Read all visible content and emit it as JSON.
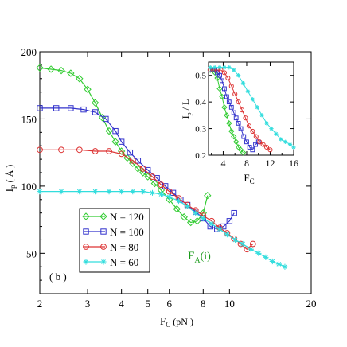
{
  "chart_data": [
    {
      "type": "line",
      "panel_label": "( b )",
      "annotation": "F_A(i)",
      "annotation_main": "F",
      "annotation_sub": "A",
      "annotation_tail": "(i)",
      "annotation_color": "#1a9a1a",
      "xlabel_main": "F",
      "xlabel_sub": "C",
      "xlabel_tail": " (pN )",
      "ylabel_main": "I",
      "ylabel_sub": "p",
      "ylabel_tail": " ( Å )",
      "xscale": "log",
      "xlim": [
        2,
        20
      ],
      "ylim": [
        20,
        200
      ],
      "x_tick_labels": [
        "2",
        "3",
        "4",
        "5",
        "6",
        "8",
        "10",
        "20"
      ],
      "x_ticks": [
        2,
        3,
        4,
        5,
        6,
        8,
        10,
        20
      ],
      "y_tick_labels": [
        "50",
        "100",
        "150",
        "200"
      ],
      "y_ticks": [
        50,
        100,
        150,
        200
      ],
      "legend_position": "bottom-left",
      "series": [
        {
          "name": "N = 120",
          "color": "#33cc33",
          "marker": "diamond",
          "x": [
            2.0,
            2.2,
            2.4,
            2.6,
            2.8,
            3.0,
            3.2,
            3.4,
            3.6,
            3.8,
            4.0,
            4.2,
            4.4,
            4.6,
            4.8,
            5.0,
            5.3,
            5.6,
            6.0,
            6.4,
            6.8,
            7.2,
            7.6,
            8.0,
            8.3
          ],
          "y": [
            188,
            187,
            186,
            184,
            180,
            172,
            162,
            151,
            141,
            133,
            126,
            121,
            117,
            113,
            110,
            107,
            102,
            97,
            90,
            83,
            77,
            73,
            74,
            80,
            93
          ]
        },
        {
          "name": "N = 100",
          "color": "#3333cc",
          "marker": "square",
          "x": [
            2.0,
            2.3,
            2.6,
            2.9,
            3.2,
            3.5,
            3.8,
            4.0,
            4.3,
            4.6,
            5.0,
            5.4,
            5.8,
            6.2,
            6.6,
            7.0,
            7.5,
            8.0,
            8.5,
            9.0,
            9.5,
            10.0,
            10.4
          ],
          "y": [
            158,
            158,
            158,
            157,
            155,
            150,
            141,
            133,
            125,
            119,
            112,
            106,
            100,
            95,
            90,
            86,
            81,
            76,
            70,
            68,
            70,
            74,
            80
          ]
        },
        {
          "name": "N =  80",
          "color": "#dd3333",
          "marker": "circle",
          "x": [
            2.0,
            2.4,
            2.8,
            3.2,
            3.6,
            4.0,
            4.4,
            4.8,
            5.2,
            5.6,
            6.0,
            6.5,
            7.0,
            7.5,
            8.0,
            8.6,
            9.2,
            9.8,
            10.4,
            11.0,
            11.6,
            12.2
          ],
          "y": [
            127,
            127,
            127,
            126,
            126,
            124,
            119,
            113,
            107,
            101,
            96,
            91,
            86,
            82,
            78,
            74,
            69,
            65,
            61,
            57,
            53,
            57
          ]
        },
        {
          "name": "N =  60",
          "color": "#33dddd",
          "marker": "star",
          "x": [
            2.0,
            2.4,
            2.8,
            3.2,
            3.6,
            4.0,
            4.4,
            4.8,
            5.2,
            5.6,
            6.0,
            6.5,
            7.0,
            7.5,
            8.0,
            8.6,
            9.2,
            9.8,
            10.5,
            11.2,
            12.0,
            12.8,
            13.6,
            14.4,
            15.2,
            16.0
          ],
          "y": [
            96,
            96,
            96,
            96,
            96,
            96,
            96,
            96,
            95,
            94,
            92,
            89,
            85,
            80,
            76,
            72,
            68,
            64,
            60,
            57,
            53,
            50,
            47,
            44,
            42,
            40
          ]
        }
      ]
    },
    {
      "type": "line",
      "inset": true,
      "xlabel_main": "F",
      "xlabel_sub": "C",
      "ylabel_main": "I",
      "ylabel_sub": "p",
      "ylabel_tail": " / L",
      "xlim": [
        1.5,
        16
      ],
      "ylim": [
        0.2,
        0.55
      ],
      "x_tick_labels": [
        "4",
        "8",
        "12",
        "16"
      ],
      "x_ticks": [
        4,
        8,
        12,
        16
      ],
      "x_minor_ticks": [
        2,
        6,
        10,
        14
      ],
      "y_tick_labels": [
        "0.2",
        "0.3",
        "0.4",
        "0.5"
      ],
      "y_ticks": [
        0.2,
        0.3,
        0.4,
        0.5
      ],
      "series": [
        {
          "name": "N = 120",
          "color": "#33cc33",
          "marker": "diamond",
          "x": [
            1.8,
            2.2,
            2.6,
            3.0,
            3.4,
            3.8,
            4.2,
            4.6,
            5.0,
            5.4,
            5.8,
            6.2,
            6.6,
            7.0,
            7.4
          ],
          "y": [
            0.52,
            0.52,
            0.51,
            0.49,
            0.45,
            0.42,
            0.38,
            0.35,
            0.32,
            0.29,
            0.27,
            0.25,
            0.23,
            0.22,
            0.21
          ]
        },
        {
          "name": "N = 100",
          "color": "#3333cc",
          "marker": "square",
          "x": [
            1.8,
            2.2,
            2.6,
            3.0,
            3.4,
            3.8,
            4.2,
            4.6,
            5.0,
            5.4,
            5.8,
            6.2,
            6.6,
            7.0,
            7.5,
            8.0,
            8.5,
            9.0,
            9.5,
            10.0
          ],
          "y": [
            0.52,
            0.52,
            0.52,
            0.51,
            0.5,
            0.48,
            0.45,
            0.42,
            0.4,
            0.38,
            0.36,
            0.34,
            0.32,
            0.3,
            0.27,
            0.25,
            0.23,
            0.22,
            0.24,
            0.25
          ]
        },
        {
          "name": "N =  80",
          "color": "#dd3333",
          "marker": "circle",
          "x": [
            1.8,
            2.4,
            3.0,
            3.6,
            4.2,
            4.8,
            5.4,
            6.0,
            6.6,
            7.2,
            7.8,
            8.4,
            9.0,
            9.6,
            10.2,
            10.8,
            11.4,
            12.0
          ],
          "y": [
            0.52,
            0.52,
            0.52,
            0.52,
            0.51,
            0.49,
            0.46,
            0.43,
            0.4,
            0.37,
            0.34,
            0.31,
            0.29,
            0.27,
            0.25,
            0.24,
            0.23,
            0.22
          ]
        },
        {
          "name": "N =  60",
          "color": "#33dddd",
          "marker": "star",
          "x": [
            1.8,
            2.6,
            3.4,
            4.2,
            5.0,
            5.8,
            6.6,
            7.4,
            8.2,
            9.0,
            9.8,
            10.6,
            11.4,
            12.2,
            13.0,
            13.8,
            14.6,
            15.4,
            16.0
          ],
          "y": [
            0.53,
            0.53,
            0.53,
            0.53,
            0.53,
            0.52,
            0.5,
            0.47,
            0.44,
            0.41,
            0.38,
            0.35,
            0.32,
            0.3,
            0.28,
            0.26,
            0.25,
            0.24,
            0.23
          ]
        }
      ]
    }
  ]
}
